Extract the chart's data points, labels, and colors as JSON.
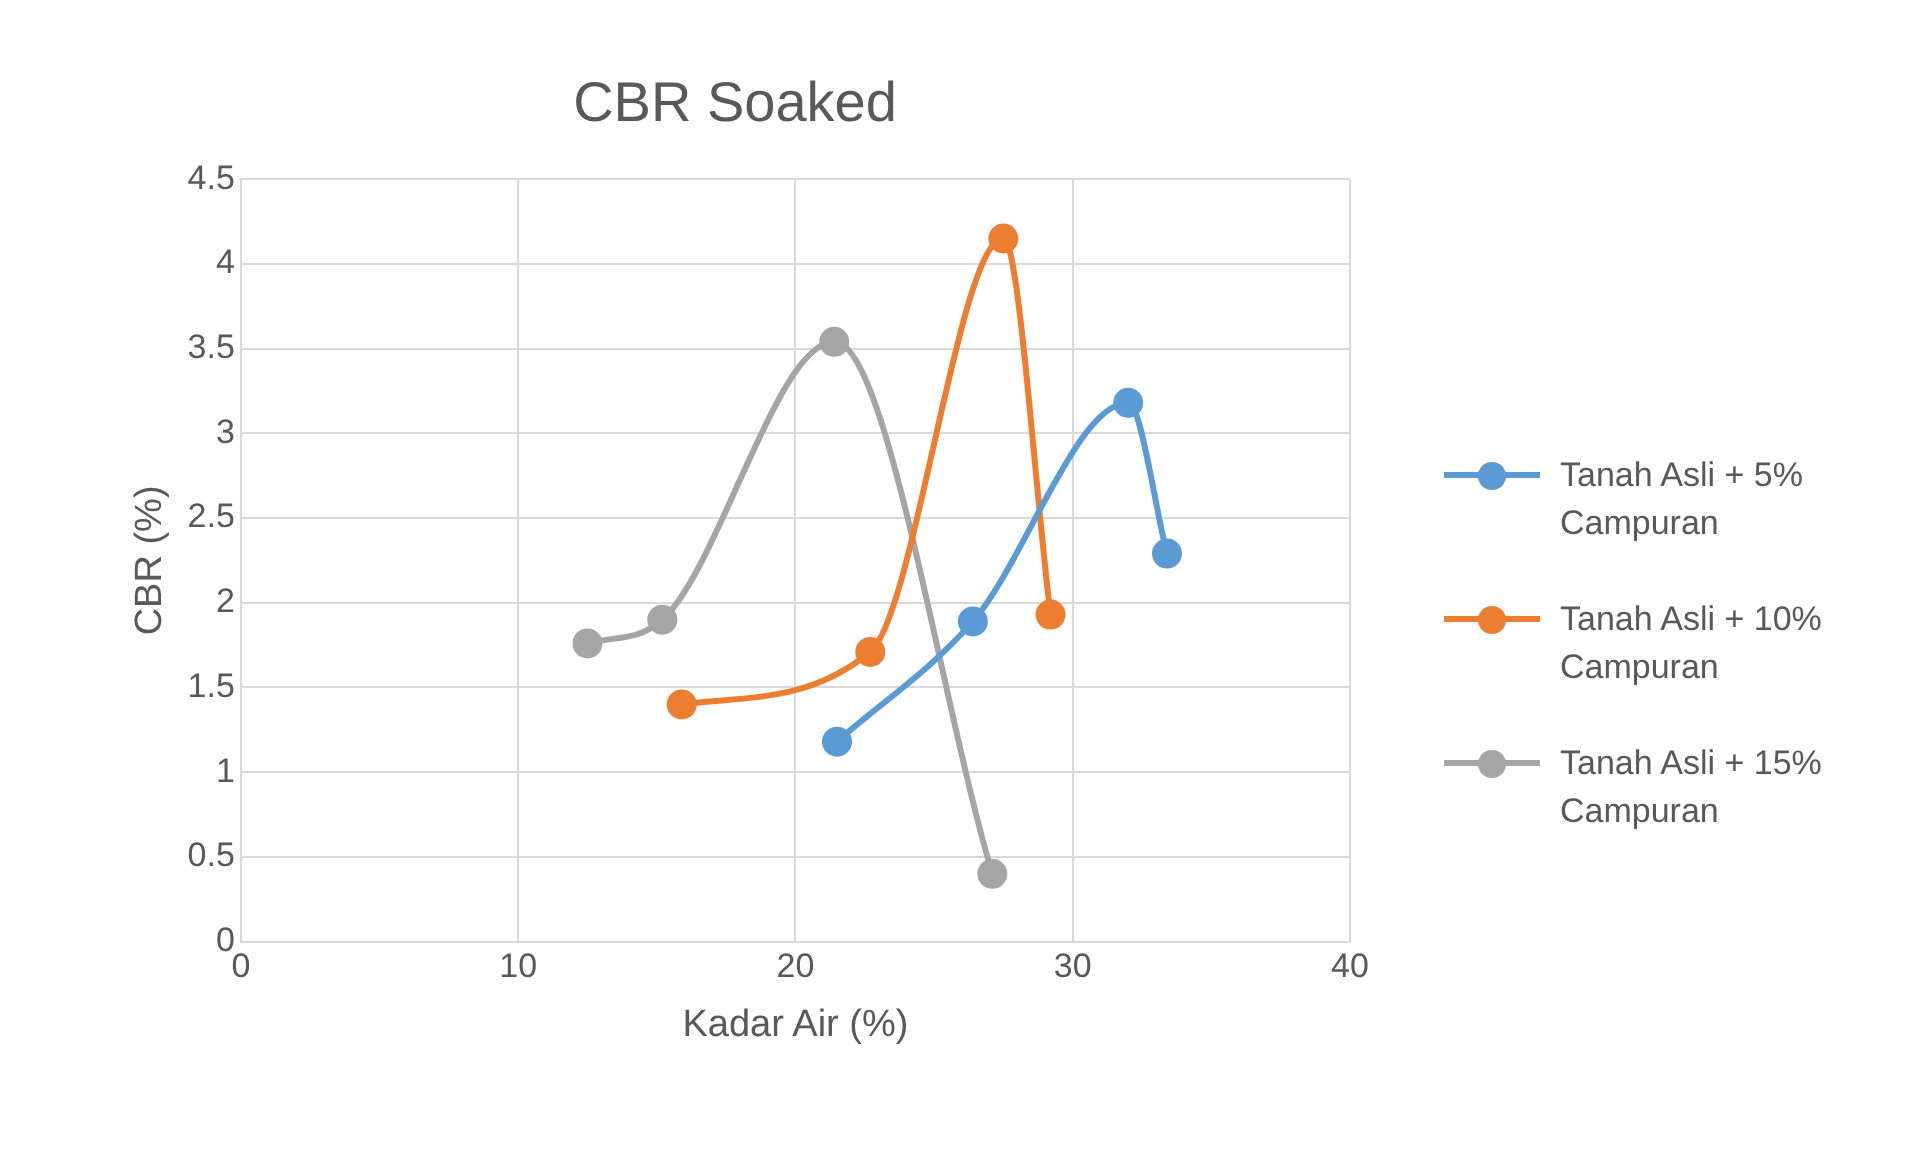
{
  "chart_data": {
    "type": "line",
    "title": "CBR Soaked",
    "xlabel": "Kadar Air (%)",
    "ylabel": "CBR (%)",
    "xlim": [
      0,
      40
    ],
    "xticks": [
      0,
      10,
      20,
      30,
      40
    ],
    "ylim": [
      0,
      4.5
    ],
    "yticks": [
      0,
      0.5,
      1,
      1.5,
      2,
      2.5,
      3,
      3.5,
      4,
      4.5
    ],
    "grid": true,
    "legend": "right",
    "marker": "circle",
    "line_style": "solid",
    "series": [
      {
        "name": "Tanah Asli + 5% Campuran",
        "color": "#5b9bd5",
        "x": [
          21.5,
          26.4,
          32.0,
          33.4
        ],
        "values": [
          1.18,
          1.89,
          3.18,
          2.29
        ]
      },
      {
        "name": "Tanah Asli + 10% Campuran",
        "color": "#ed7d31",
        "x": [
          15.9,
          22.7,
          27.5,
          29.2
        ],
        "values": [
          1.4,
          1.71,
          4.15,
          1.93
        ]
      },
      {
        "name": "Tanah Asli + 15% Campuran",
        "color": "#a5a5a5",
        "x": [
          12.5,
          15.2,
          21.4,
          27.1
        ],
        "values": [
          1.76,
          1.9,
          3.54,
          0.4
        ]
      }
    ]
  }
}
